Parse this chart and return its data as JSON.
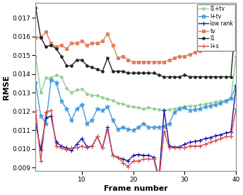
{
  "title": "",
  "xlabel": "Frame number",
  "ylabel": "RMSE",
  "xlim": [
    1,
    40
  ],
  "ylim": [
    0.0088,
    0.0178
  ],
  "yticks": [
    0.009,
    0.01,
    0.011,
    0.012,
    0.013,
    0.014,
    0.015,
    0.016,
    0.017
  ],
  "xticks": [
    10,
    20,
    30,
    40
  ],
  "series": {
    "l1+tv": {
      "color": "#90d090",
      "marker": "o",
      "markersize": 2.5,
      "linewidth": 1.0,
      "label": "l1+tv",
      "values": [
        0.01495,
        0.013,
        0.0138,
        0.0138,
        0.01395,
        0.01385,
        0.01325,
        0.013,
        0.01315,
        0.0132,
        0.01295,
        0.01285,
        0.01285,
        0.01275,
        0.01265,
        0.0126,
        0.01245,
        0.0124,
        0.0123,
        0.01225,
        0.0122,
        0.01215,
        0.0122,
        0.01215,
        0.0121,
        0.01205,
        0.0121,
        0.01215,
        0.0122,
        0.01225,
        0.0123,
        0.0123,
        0.01235,
        0.0124,
        0.01245,
        0.0125,
        0.01255,
        0.0126,
        0.0127,
        0.01495
      ]
    },
    "l+tv": {
      "color": "#4499dd",
      "marker": "*",
      "markersize": 4.5,
      "linewidth": 1.0,
      "label": "l+tv",
      "values": [
        0.01355,
        0.01175,
        0.01135,
        0.0137,
        0.01355,
        0.01255,
        0.01215,
        0.01155,
        0.01215,
        0.01235,
        0.01135,
        0.01155,
        0.01215,
        0.01205,
        0.01225,
        0.01155,
        0.01105,
        0.01115,
        0.01105,
        0.011,
        0.01115,
        0.01135,
        0.01115,
        0.01115,
        0.01115,
        0.0112,
        0.01135,
        0.01195,
        0.01215,
        0.0122,
        0.01205,
        0.0121,
        0.01215,
        0.01225,
        0.0123,
        0.01235,
        0.01245,
        0.01255,
        0.0127,
        0.0134
      ]
    },
    "low_rank": {
      "color": "#1111aa",
      "marker": "+",
      "markersize": 4.0,
      "linewidth": 1.0,
      "label": "low rank",
      "values": [
        0.01135,
        0.00995,
        0.01165,
        0.01175,
        0.01035,
        0.01015,
        0.01005,
        0.0099,
        0.01025,
        0.01055,
        0.0101,
        0.01015,
        0.01065,
        0.01005,
        0.01115,
        0.00965,
        0.00955,
        0.00945,
        0.00935,
        0.00965,
        0.0097,
        0.00965,
        0.00965,
        0.00955,
        0.0084,
        0.01205,
        0.01015,
        0.0101,
        0.0101,
        0.01025,
        0.01035,
        0.0104,
        0.01045,
        0.01055,
        0.0106,
        0.0107,
        0.01075,
        0.01085,
        0.0109,
        0.01335
      ]
    },
    "tv": {
      "color": "#e08060",
      "marker": "s",
      "markersize": 2.5,
      "linewidth": 1.0,
      "label": "tv",
      "values": [
        0.01595,
        0.01595,
        0.01625,
        0.01565,
        0.01545,
        0.01555,
        0.01535,
        0.01565,
        0.01565,
        0.01575,
        0.01555,
        0.01565,
        0.01565,
        0.01575,
        0.01615,
        0.01555,
        0.01485,
        0.01495,
        0.01475,
        0.01465,
        0.01465,
        0.01465,
        0.01465,
        0.01465,
        0.01465,
        0.01465,
        0.01475,
        0.01485,
        0.01495,
        0.01495,
        0.01505,
        0.01515,
        0.01525,
        0.01535,
        0.01545,
        0.01555,
        0.01565,
        0.01575,
        0.01585,
        0.01725
      ]
    },
    "l1": {
      "color": "#222222",
      "marker": "o",
      "markersize": 2.5,
      "linewidth": 1.0,
      "label": "l1",
      "values": [
        0.01755,
        0.01595,
        0.01545,
        0.01555,
        0.01535,
        0.01495,
        0.01445,
        0.01445,
        0.01475,
        0.01475,
        0.01445,
        0.01435,
        0.01425,
        0.01415,
        0.01485,
        0.01415,
        0.01415,
        0.01415,
        0.01405,
        0.01405,
        0.01405,
        0.01405,
        0.01405,
        0.01405,
        0.01395,
        0.01385,
        0.01385,
        0.01385,
        0.01385,
        0.01395,
        0.01385,
        0.01385,
        0.01385,
        0.01385,
        0.01385,
        0.01385,
        0.01385,
        0.01385,
        0.01385,
        0.01705
      ]
    },
    "l+s": {
      "color": "#dd4444",
      "marker": "+",
      "markersize": 4.0,
      "linewidth": 1.0,
      "label": "l+s",
      "values": [
        0.01205,
        0.00935,
        0.01195,
        0.01205,
        0.01015,
        0.01005,
        0.00995,
        0.01005,
        0.01005,
        0.01015,
        0.01005,
        0.01015,
        0.01065,
        0.01005,
        0.01105,
        0.00965,
        0.00955,
        0.00925,
        0.00905,
        0.00935,
        0.00935,
        0.00945,
        0.00945,
        0.00945,
        0.0083,
        0.01095,
        0.01005,
        0.01005,
        0.01005,
        0.01005,
        0.01015,
        0.01015,
        0.01015,
        0.01025,
        0.01035,
        0.01045,
        0.01055,
        0.01065,
        0.01065,
        0.01215
      ]
    }
  },
  "legend_order": [
    "l1+tv",
    "l+tv",
    "low_rank",
    "tv",
    "l1",
    "l+s"
  ],
  "legend_labels": [
    "l1+tv",
    "l+tv",
    "low rank",
    "tv",
    "l1",
    "l+s"
  ],
  "figsize": [
    3.44,
    2.76
  ],
  "dpi": 100
}
